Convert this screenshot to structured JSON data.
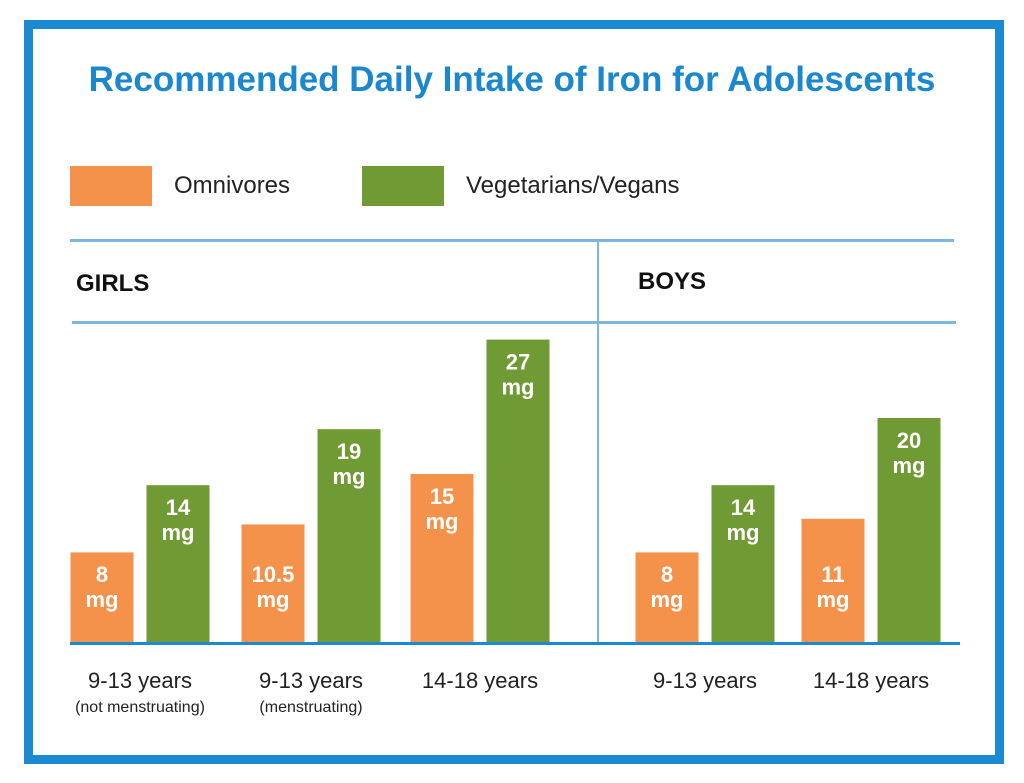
{
  "colors": {
    "frame": "#1a8ad1",
    "title": "#1a87cf",
    "omnivore": "#f4924b",
    "vegetarian": "#6f9a34",
    "divider": "#7fb6e0"
  },
  "chart_data": {
    "type": "bar",
    "title": "Recommended Daily Intake of Iron for Adolescents",
    "unit": "mg",
    "legend": [
      "Omnivores",
      "Vegetarians/Vegans"
    ],
    "legend_position": "top-left",
    "ylim": [
      0,
      30
    ],
    "panels": [
      {
        "name": "GIRLS",
        "categories": [
          {
            "label": "9-13 years",
            "sub": "(not menstruating)"
          },
          {
            "label": "9-13 years",
            "sub": "(menstruating)"
          },
          {
            "label": "14-18 years",
            "sub": ""
          }
        ],
        "series": [
          {
            "name": "Omnivores",
            "values": [
              8,
              10.5,
              15
            ],
            "labels": [
              "8",
              "10.5",
              "15"
            ]
          },
          {
            "name": "Vegetarians/Vegans",
            "values": [
              14,
              19,
              27
            ],
            "labels": [
              "14",
              "19",
              "27"
            ]
          }
        ]
      },
      {
        "name": "BOYS",
        "categories": [
          {
            "label": "9-13 years",
            "sub": ""
          },
          {
            "label": "14-18 years",
            "sub": ""
          }
        ],
        "series": [
          {
            "name": "Omnivores",
            "values": [
              8,
              11
            ],
            "labels": [
              "8",
              "11"
            ]
          },
          {
            "name": "Vegetarians/Vegans",
            "values": [
              14,
              20
            ],
            "labels": [
              "14",
              "20"
            ]
          }
        ]
      }
    ]
  }
}
